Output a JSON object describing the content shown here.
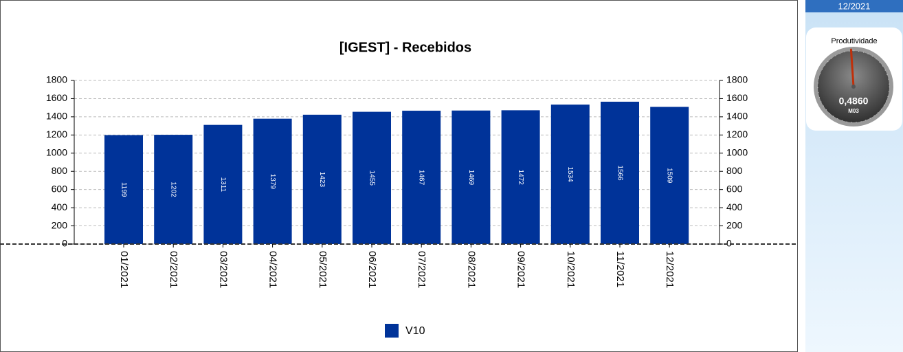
{
  "chart_data": {
    "type": "bar",
    "title": "[IGEST]  - Recebidos",
    "categories": [
      "01/2021",
      "02/2021",
      "03/2021",
      "04/2021",
      "05/2021",
      "06/2021",
      "07/2021",
      "08/2021",
      "09/2021",
      "10/2021",
      "11/2021",
      "12/2021"
    ],
    "series": [
      {
        "name": "V10",
        "color": "#003399",
        "values": [
          1199,
          1202,
          1311,
          1379,
          1423,
          1455,
          1467,
          1469,
          1472,
          1534,
          1566,
          1509
        ]
      }
    ],
    "ylim": [
      0,
      1800
    ],
    "yticks": [
      0,
      200,
      400,
      600,
      800,
      1000,
      1200,
      1400,
      1600,
      1800
    ],
    "grid": true
  },
  "panel": {
    "period": "12/2021",
    "gauge": {
      "title": "Produtividade",
      "value": 0.486,
      "label": "0,4860",
      "code": "M03",
      "range": [
        0,
        1
      ]
    }
  }
}
